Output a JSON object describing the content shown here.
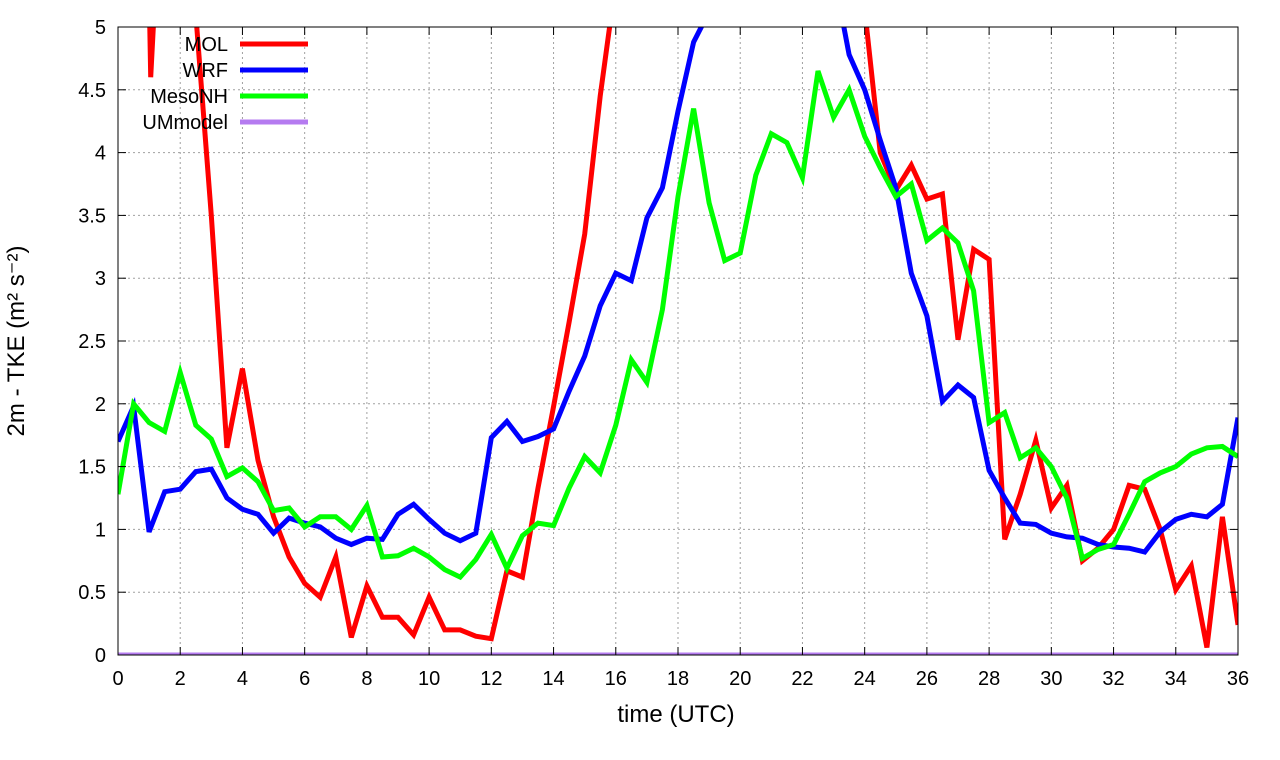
{
  "chart_data": {
    "type": "line",
    "xlabel": "time (UTC)",
    "ylabel": "2m - TKE (m² s⁻²)",
    "xlim": [
      0,
      36
    ],
    "ylim": [
      0,
      5
    ],
    "xticks": [
      "0",
      "2",
      "4",
      "6",
      "8",
      "10",
      "12",
      "14",
      "16",
      "18",
      "20",
      "22",
      "24",
      "26",
      "28",
      "30",
      "32",
      "34",
      "36"
    ],
    "yticks": [
      "0",
      "0.5",
      "1",
      "1.5",
      "2",
      "2.5",
      "3",
      "3.5",
      "4",
      "4.5",
      "5"
    ],
    "grid": true,
    "legend_position": "top-left",
    "series": [
      {
        "name": "MOL",
        "color": "#ff0000",
        "x": [
          1.0,
          1.05,
          1.2,
          1.3,
          1.5,
          2.5,
          3.0,
          3.5,
          4.0,
          4.5,
          5.0,
          5.5,
          6.0,
          6.5,
          7.0,
          7.5,
          8.0,
          8.5,
          9.0,
          9.5,
          10.0,
          10.5,
          11.0,
          11.5,
          12.0,
          12.5,
          13.0,
          13.5,
          14.0,
          14.5,
          15.0,
          15.5,
          15.8,
          16.5,
          23.8,
          24.5,
          25.0,
          25.5,
          26.0,
          26.5,
          27.0,
          27.5,
          28.0,
          28.5,
          29.0,
          29.5,
          30.0,
          30.5,
          31.0,
          31.5,
          32.0,
          32.5,
          33.0,
          33.5,
          34.0,
          34.5,
          35.0,
          35.5,
          36.0
        ],
        "values": [
          5.3,
          4.6,
          5.3,
          5.1,
          5.5,
          5.1,
          3.5,
          1.65,
          2.28,
          1.55,
          1.1,
          0.78,
          0.57,
          0.46,
          0.78,
          0.14,
          0.55,
          0.3,
          0.3,
          0.16,
          0.46,
          0.2,
          0.2,
          0.15,
          0.13,
          0.67,
          0.62,
          1.33,
          1.98,
          2.65,
          3.35,
          4.45,
          5.0,
          5.6,
          5.6,
          4.0,
          3.7,
          3.9,
          3.63,
          3.67,
          2.51,
          3.23,
          3.15,
          0.92,
          1.28,
          1.71,
          1.17,
          1.35,
          0.75,
          0.85,
          1.0,
          1.35,
          1.32,
          1.0,
          0.52,
          0.71,
          0.06,
          1.1,
          0.24
        ]
      },
      {
        "name": "WRF",
        "color": "#0000ff",
        "x": [
          0.0,
          0.5,
          1.0,
          1.5,
          2.0,
          2.5,
          3.0,
          3.5,
          4.0,
          4.5,
          5.0,
          5.5,
          6.0,
          6.5,
          7.0,
          7.5,
          8.0,
          8.5,
          9.0,
          9.5,
          10.0,
          10.5,
          11.0,
          11.5,
          12.0,
          12.5,
          13.0,
          13.5,
          14.0,
          14.5,
          15.0,
          15.5,
          16.0,
          16.5,
          17.0,
          17.5,
          18.0,
          18.5,
          18.75,
          19.5,
          23.1,
          23.5,
          24.0,
          24.5,
          25.0,
          25.5,
          26.0,
          26.5,
          27.0,
          27.5,
          28.0,
          28.5,
          29.0,
          29.5,
          30.0,
          30.5,
          31.0,
          31.5,
          32.0,
          32.5,
          33.0,
          33.5,
          34.0,
          34.5,
          35.0,
          35.5,
          36.0
        ],
        "values": [
          1.7,
          1.98,
          0.98,
          1.3,
          1.32,
          1.46,
          1.48,
          1.25,
          1.16,
          1.12,
          0.97,
          1.09,
          1.05,
          1.02,
          0.93,
          0.88,
          0.93,
          0.92,
          1.12,
          1.2,
          1.08,
          0.97,
          0.91,
          0.97,
          1.73,
          1.86,
          1.7,
          1.74,
          1.8,
          2.1,
          2.38,
          2.78,
          3.04,
          2.98,
          3.48,
          3.72,
          4.33,
          4.88,
          5.0,
          5.6,
          5.3,
          4.78,
          4.5,
          4.1,
          3.72,
          3.04,
          2.7,
          2.02,
          2.15,
          2.05,
          1.47,
          1.25,
          1.05,
          1.04,
          0.97,
          0.94,
          0.93,
          0.88,
          0.86,
          0.85,
          0.82,
          0.98,
          1.08,
          1.12,
          1.1,
          1.2,
          1.89
        ]
      },
      {
        "name": "MesoNH",
        "color": "#00ff00",
        "x": [
          0.0,
          0.5,
          1.0,
          1.5,
          2.0,
          2.5,
          3.0,
          3.5,
          4.0,
          4.5,
          5.0,
          5.5,
          6.0,
          6.5,
          7.0,
          7.5,
          8.0,
          8.5,
          9.0,
          9.5,
          10.0,
          10.5,
          11.0,
          11.5,
          12.0,
          12.5,
          13.0,
          13.5,
          14.0,
          14.5,
          15.0,
          15.5,
          16.0,
          16.5,
          17.0,
          17.5,
          18.0,
          18.5,
          19.0,
          19.5,
          20.0,
          20.5,
          21.0,
          21.5,
          22.0,
          22.5,
          23.0,
          23.5,
          24.0,
          24.5,
          25.0,
          25.5,
          26.0,
          26.5,
          27.0,
          27.5,
          28.0,
          28.5,
          29.0,
          29.5,
          30.0,
          30.5,
          31.0,
          31.5,
          32.0,
          32.5,
          33.0,
          33.5,
          34.0,
          34.5,
          35.0,
          35.5,
          36.0
        ],
        "values": [
          1.28,
          2.0,
          1.85,
          1.78,
          2.25,
          1.83,
          1.72,
          1.42,
          1.49,
          1.38,
          1.15,
          1.17,
          1.02,
          1.1,
          1.1,
          1.0,
          1.19,
          0.78,
          0.79,
          0.85,
          0.78,
          0.68,
          0.62,
          0.76,
          0.96,
          0.69,
          0.95,
          1.05,
          1.03,
          1.33,
          1.58,
          1.45,
          1.83,
          2.35,
          2.17,
          2.75,
          3.65,
          4.35,
          3.6,
          3.14,
          3.2,
          3.82,
          4.15,
          4.08,
          3.8,
          4.65,
          4.28,
          4.5,
          4.13,
          3.88,
          3.65,
          3.75,
          3.3,
          3.4,
          3.28,
          2.9,
          1.85,
          1.93,
          1.57,
          1.65,
          1.5,
          1.25,
          0.77,
          0.84,
          0.88,
          1.12,
          1.38,
          1.45,
          1.5,
          1.6,
          1.65,
          1.66,
          1.58
        ]
      },
      {
        "name": "UMmodel",
        "color": "#b57bf0",
        "x": [
          0,
          36
        ],
        "values": [
          0,
          0
        ]
      }
    ]
  }
}
